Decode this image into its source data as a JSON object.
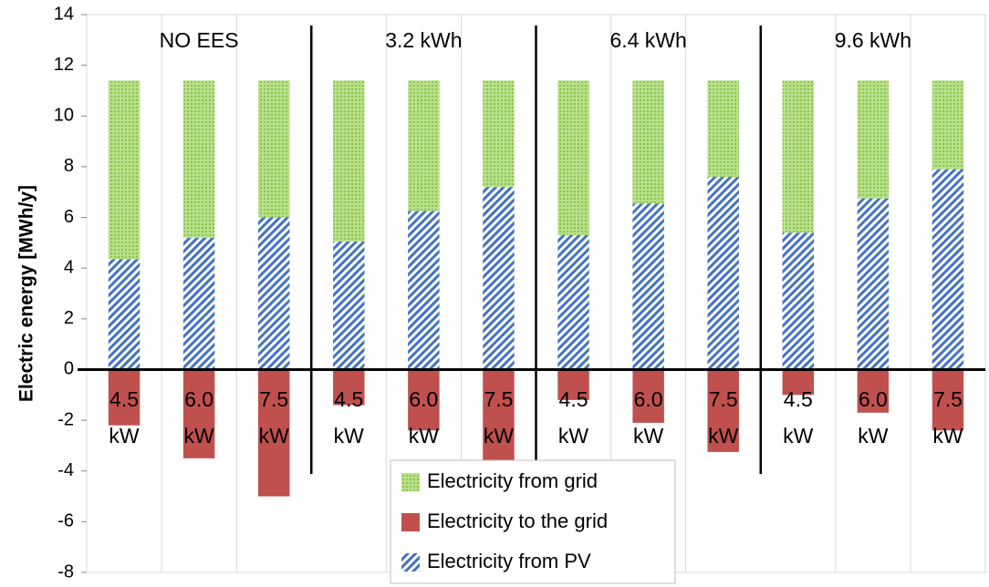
{
  "chart_data": {
    "type": "stacked_bar",
    "ylabel": "Electric energy [MWh/y]",
    "groups": [
      "NO EES",
      "3.2 kWh",
      "6.4 kWh",
      "9.6 kWh"
    ],
    "categories": [
      "4.5 kW",
      "6.0 kW",
      "7.5 kW",
      "4.5 kW",
      "6.0 kW",
      "7.5 kW",
      "4.5 kW",
      "6.0 kW",
      "7.5 kW",
      "4.5 kW",
      "6.0 kW",
      "7.5 kW"
    ],
    "series": [
      {
        "name": "Electricity from PV",
        "color": "#4472c4",
        "values": [
          4.35,
          5.2,
          6.0,
          5.05,
          6.25,
          7.2,
          5.3,
          6.55,
          7.6,
          5.4,
          6.75,
          7.9
        ]
      },
      {
        "name": "Electricity from grid",
        "color": "#92d050",
        "values": [
          7.05,
          6.2,
          5.4,
          6.35,
          5.15,
          4.2,
          6.1,
          4.85,
          3.8,
          6.0,
          4.65,
          3.5
        ]
      },
      {
        "name": "Electricity to the grid",
        "color": "#c0504d",
        "values": [
          -2.2,
          -3.5,
          -5.0,
          -1.4,
          -2.4,
          -3.75,
          -1.2,
          -2.1,
          -3.25,
          -1.0,
          -1.7,
          -2.4
        ]
      }
    ],
    "legend_order": [
      1,
      2,
      0
    ],
    "ylim": [
      -8,
      14
    ],
    "yticks": [
      -8,
      -6,
      -4,
      -2,
      0,
      2,
      4,
      6,
      8,
      10,
      12,
      14
    ]
  }
}
